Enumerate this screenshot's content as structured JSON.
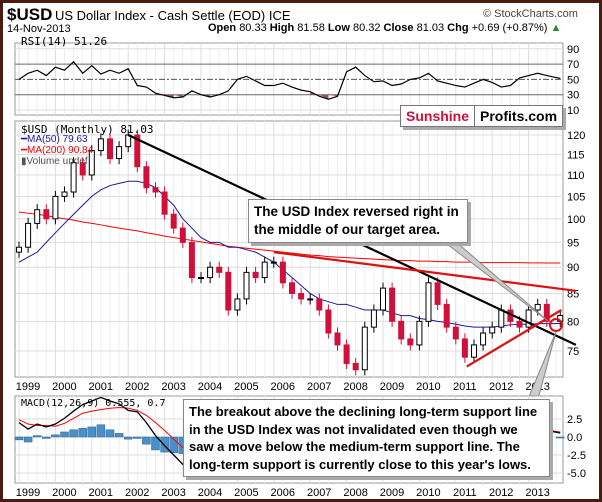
{
  "header": {
    "symbol": "$USD",
    "name": "US Dollar Index - Cash Settle (EOD) ICE",
    "source": "© StockCharts.com",
    "date": "14-Nov-2013",
    "open_label": "Open",
    "open": "80.33",
    "high_label": "High",
    "high": "81.58",
    "low_label": "Low",
    "low": "80.32",
    "close_label": "Close",
    "close": "81.03",
    "chg_label": "Chg",
    "chg": "+0.69 (+0.87%)"
  },
  "logo": {
    "part1": "Sunshine",
    "part2": "Profits.com"
  },
  "annotations": {
    "top": "The USD Index reversed right in the middle of our target area.",
    "bottom": "The breakout above the declining long-term support line in the USD Index was not invalidated even though we saw a move below the medium-term support line. The long-term support is currently close to this year's lows."
  },
  "colors": {
    "up": "#000000",
    "down": "#d0103a",
    "ma50": "#1a1aa0",
    "ma200": "#ff0000",
    "trend_red": "#dd1111",
    "rsi_fill": "#8a5a50",
    "hist": "#4a90c8",
    "frame": "#4a1c10"
  },
  "chart_data": [
    {
      "type": "line",
      "panel": "RSI",
      "title": "RSI(14) 51.26",
      "yticks": [
        90,
        70,
        50,
        30,
        10
      ],
      "ylim": [
        0,
        100
      ],
      "grid": true,
      "x": [
        1999.0,
        1999.25,
        1999.5,
        1999.75,
        2000.0,
        2000.25,
        2000.5,
        2000.75,
        2001.0,
        2001.25,
        2001.5,
        2001.75,
        2002.0,
        2002.25,
        2002.5,
        2002.75,
        2003.0,
        2003.25,
        2003.5,
        2003.75,
        2004.0,
        2004.25,
        2004.5,
        2004.75,
        2005.0,
        2005.25,
        2005.5,
        2005.75,
        2006.0,
        2006.25,
        2006.5,
        2006.75,
        2007.0,
        2007.25,
        2007.5,
        2007.75,
        2008.0,
        2008.25,
        2008.5,
        2008.75,
        2009.0,
        2009.25,
        2009.5,
        2009.75,
        2010.0,
        2010.25,
        2010.5,
        2010.75,
        2011.0,
        2011.25,
        2011.5,
        2011.75,
        2012.0,
        2012.25,
        2012.5,
        2012.75,
        2013.0,
        2013.25,
        2013.5,
        2013.87
      ],
      "values": [
        50,
        58,
        62,
        55,
        66,
        62,
        73,
        58,
        68,
        57,
        62,
        58,
        64,
        42,
        40,
        32,
        29,
        26,
        27,
        35,
        30,
        27,
        30,
        35,
        50,
        54,
        48,
        42,
        42,
        45,
        40,
        36,
        34,
        28,
        24,
        28,
        60,
        66,
        55,
        47,
        48,
        42,
        44,
        50,
        52,
        58,
        48,
        45,
        42,
        40,
        45,
        50,
        46,
        40,
        42,
        52,
        55,
        58,
        55,
        51.26
      ]
    },
    {
      "type": "candlestick",
      "panel": "Price",
      "title": "$USD (Monthly) 81.03",
      "legend": [
        "MA(50) 79.63",
        "MA(200) 90.84",
        "Volume undef"
      ],
      "ylim": [
        70,
        122
      ],
      "yscale": "log",
      "yticks": [
        120,
        115,
        110,
        105,
        100,
        95,
        90,
        85,
        80,
        75
      ],
      "grid": true,
      "xticks": [
        "1999",
        "2000",
        "2001",
        "2002",
        "2003",
        "2004",
        "2005",
        "2006",
        "2007",
        "2008",
        "2009",
        "2010",
        "2011",
        "2012",
        "2013"
      ],
      "x": [
        1999.0,
        1999.25,
        1999.5,
        1999.75,
        2000.0,
        2000.25,
        2000.5,
        2000.75,
        2001.0,
        2001.25,
        2001.5,
        2001.75,
        2002.0,
        2002.25,
        2002.5,
        2002.75,
        2003.0,
        2003.25,
        2003.5,
        2003.75,
        2004.0,
        2004.25,
        2004.5,
        2004.75,
        2005.0,
        2005.25,
        2005.5,
        2005.75,
        2006.0,
        2006.25,
        2006.5,
        2006.75,
        2007.0,
        2007.25,
        2007.5,
        2007.75,
        2008.0,
        2008.25,
        2008.5,
        2008.75,
        2009.0,
        2009.25,
        2009.5,
        2009.75,
        2010.0,
        2010.25,
        2010.5,
        2010.75,
        2011.0,
        2011.25,
        2011.5,
        2011.75,
        2012.0,
        2012.25,
        2012.5,
        2012.75,
        2013.0,
        2013.25,
        2013.5,
        2013.87
      ],
      "close": [
        94,
        99,
        102,
        100,
        105,
        106,
        113,
        110,
        116,
        119,
        114,
        117,
        120,
        112,
        107,
        106,
        101,
        98,
        95,
        88,
        88,
        90,
        89,
        82,
        84,
        89,
        88,
        91,
        91,
        87,
        85,
        84,
        84,
        82,
        78,
        76,
        73,
        72,
        79,
        82,
        86,
        80,
        77,
        76,
        80,
        87,
        83,
        79,
        77,
        74,
        76,
        78,
        79,
        82,
        80,
        79,
        82,
        83,
        80,
        81.03
      ],
      "ma50": [
        91,
        92,
        93,
        95,
        97,
        99,
        101,
        103,
        105,
        106.5,
        107.5,
        108,
        108.5,
        108.5,
        108,
        107,
        105,
        103,
        100,
        98,
        96,
        95,
        95,
        94,
        94,
        93.5,
        93,
        92,
        91,
        89.5,
        88,
        86.5,
        85,
        84,
        83.5,
        83,
        83,
        82.5,
        82,
        82,
        82,
        81.5,
        81,
        81,
        80.5,
        80.3,
        80,
        79.8,
        79.5,
        79.2,
        79,
        79,
        79,
        79.2,
        79.4,
        79.5,
        79.5,
        79.6,
        79.6,
        79.63
      ],
      "ma200": [
        101.5,
        101.2,
        101,
        100.7,
        100.3,
        100,
        99.7,
        99.3,
        99,
        98.7,
        98.3,
        98,
        97.7,
        97.4,
        97,
        96.7,
        96.3,
        96,
        95.7,
        95.4,
        95.1,
        94.8,
        94.5,
        94.2,
        94,
        93.8,
        93.6,
        93.4,
        93.2,
        93,
        92.8,
        92.6,
        92.4,
        92.3,
        92.1,
        92,
        91.9,
        91.8,
        91.7,
        91.6,
        91.5,
        91.4,
        91.3,
        91.3,
        91.2,
        91.2,
        91.1,
        91.1,
        91,
        91,
        91,
        90.9,
        90.9,
        90.9,
        90.9,
        90.9,
        90.85,
        90.85,
        90.84,
        90.84
      ],
      "trendlines": [
        {
          "color": "black",
          "from": [
            2002.0,
            120
          ],
          "to": [
            2014.3,
            76
          ]
        },
        {
          "color": "red",
          "from": [
            2006.0,
            93
          ],
          "to": [
            2014.3,
            85.5
          ]
        },
        {
          "color": "red",
          "from": [
            2011.3,
            72.5
          ],
          "to": [
            2013.9,
            82
          ]
        }
      ]
    },
    {
      "type": "line+histogram",
      "panel": "MACD",
      "title": "MACD(12,26,9) 0.555, 0.7",
      "yticks": [
        2.5,
        0.0,
        -2.5,
        -5.0
      ],
      "ylim": [
        -6.5,
        4
      ],
      "grid": true,
      "x": [
        1999.0,
        1999.25,
        1999.5,
        1999.75,
        2000.0,
        2000.25,
        2000.5,
        2000.75,
        2001.0,
        2001.25,
        2001.5,
        2001.75,
        2002.0,
        2002.25,
        2002.5,
        2002.75,
        2003.0,
        2003.25,
        2003.5,
        2003.75,
        2004.0,
        2004.25,
        2004.5,
        2004.75,
        2005.0,
        2005.25,
        2005.5,
        2005.75,
        2006.0,
        2006.25,
        2006.5,
        2006.75,
        2007.0,
        2007.25,
        2007.5,
        2007.75,
        2008.0,
        2008.25,
        2008.5,
        2008.75,
        2009.0,
        2009.25,
        2009.5,
        2009.75,
        2010.0,
        2010.25,
        2010.5,
        2010.75,
        2011.0,
        2011.25,
        2011.5,
        2011.75,
        2012.0,
        2012.25,
        2012.5,
        2012.75,
        2013.0,
        2013.25,
        2013.5,
        2013.87
      ],
      "macd": [
        2.0,
        1.1,
        1.8,
        1.4,
        1.8,
        2.6,
        3.6,
        4.5,
        5,
        5.5,
        5,
        4.6,
        3.7,
        3.5,
        2.0,
        0.2,
        -1.2,
        -2.5,
        -3.8,
        -4.6,
        -5.6,
        -5.5,
        -5.1,
        -5.0,
        -4.8,
        -3.5,
        -2.8,
        -2.0,
        -1.5,
        -1.6,
        -1.8,
        -2.2,
        -2.5,
        -3.0,
        -3.5,
        -4.0,
        -4.5,
        -4.2,
        -3.0,
        -1.5,
        -0.5,
        -0.6,
        -0.9,
        -1.0,
        -0.5,
        0.5,
        0.4,
        0.0,
        -0.5,
        -1.0,
        -0.8,
        -0.3,
        0.2,
        0.5,
        0.6,
        0.6,
        0.9,
        1.0,
        0.9,
        0.555
      ],
      "signal": [
        2.4,
        1.8,
        1.6,
        1.6,
        1.5,
        1.9,
        2.6,
        3.3,
        3.6,
        3.8,
        4.0,
        4.1,
        4.0,
        3.7,
        3.0,
        2.0,
        0.9,
        -0.3,
        -1.5,
        -2.8,
        -4.2,
        -4.8,
        -5.0,
        -5.0,
        -4.9,
        -4.3,
        -3.6,
        -2.9,
        -2.3,
        -1.9,
        -1.8,
        -2.0,
        -2.2,
        -2.6,
        -3.0,
        -3.5,
        -4.0,
        -4.2,
        -3.8,
        -2.8,
        -1.6,
        -1.0,
        -0.9,
        -0.9,
        -0.7,
        0.0,
        0.3,
        0.2,
        -0.2,
        -0.7,
        -0.8,
        -0.5,
        -0.1,
        0.3,
        0.5,
        0.6,
        0.8,
        0.9,
        0.95,
        0.7
      ]
    }
  ]
}
